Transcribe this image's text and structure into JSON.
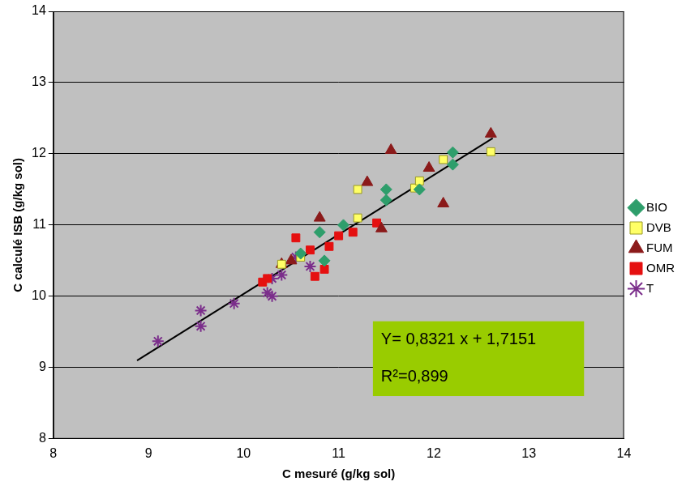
{
  "chart_data": {
    "type": "scatter",
    "x_label": "C mesuré (g/kg sol)",
    "y_label": "C calculé ISB (g/kg sol)",
    "xlim": [
      8,
      14
    ],
    "xticks": [
      8,
      9,
      10,
      11,
      12,
      13,
      14
    ],
    "ylim": [
      8,
      14
    ],
    "yticks": [
      8,
      9,
      10,
      11,
      12,
      13,
      14
    ],
    "grid": true,
    "legend": "right",
    "series": [
      {
        "name": "BIO",
        "color": "#2e9e6b",
        "marker": "diamond",
        "x": [
          10.8,
          11.05,
          11.5,
          11.5,
          11.85,
          12.2,
          12.2,
          10.85,
          10.6
        ],
        "values": [
          10.9,
          11.0,
          11.35,
          11.5,
          11.5,
          12.02,
          11.85,
          10.5,
          10.6
        ]
      },
      {
        "name": "DVB",
        "color": "#ffff66",
        "marker": "square",
        "x": [
          11.2,
          11.2,
          11.8,
          11.85,
          12.1,
          12.6,
          10.4,
          10.6
        ],
        "values": [
          11.5,
          11.1,
          11.52,
          11.62,
          11.92,
          12.03,
          10.45,
          10.55
        ]
      },
      {
        "name": "FUM",
        "color": "#8b1a1a",
        "marker": "triangle",
        "x": [
          10.8,
          11.3,
          11.55,
          11.45,
          11.95,
          12.1,
          12.6,
          10.5,
          10.4
        ],
        "values": [
          11.1,
          11.6,
          12.05,
          10.95,
          11.8,
          11.3,
          12.28,
          10.5,
          10.45
        ]
      },
      {
        "name": "OMR",
        "color": "#e51010",
        "marker": "square",
        "x": [
          10.2,
          10.25,
          10.55,
          10.75,
          10.85,
          10.9,
          11.0,
          11.15,
          11.4,
          10.7
        ],
        "values": [
          10.2,
          10.25,
          10.82,
          10.28,
          10.38,
          10.7,
          10.85,
          10.9,
          11.03,
          10.65
        ]
      },
      {
        "name": "T",
        "color": "#7b2e8b",
        "marker": "star",
        "x": [
          9.1,
          9.55,
          9.55,
          9.9,
          10.25,
          10.3,
          10.4,
          10.55,
          10.7,
          10.3
        ],
        "values": [
          9.37,
          9.8,
          9.58,
          9.9,
          10.05,
          10.25,
          10.3,
          10.55,
          10.42,
          10.0
        ]
      }
    ],
    "fit_line": {
      "color": "#000000",
      "x": [
        8.88,
        12.62
      ],
      "values": [
        9.1,
        12.22
      ]
    },
    "annotation": {
      "lines": [
        "Y= 0,8321 x + 1,7151",
        "R²=0,899"
      ],
      "color": "#99cc00"
    }
  }
}
